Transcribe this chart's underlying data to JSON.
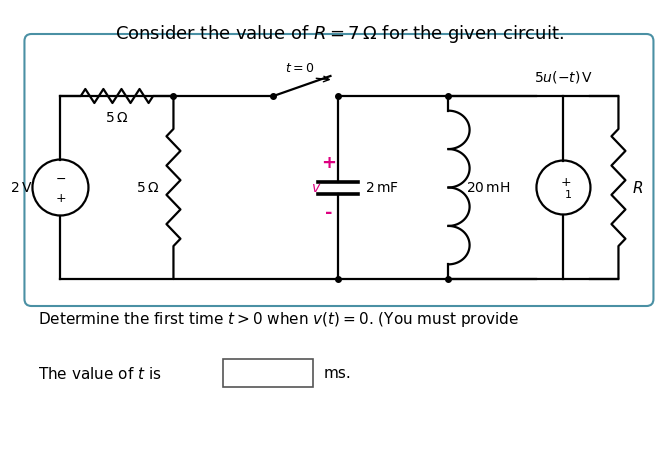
{
  "title": "Consider the value of $R = 7\\,\\Omega$ for the given circuit.",
  "title_fontsize": 13,
  "body_text1": "Determine the first time $t > 0$ when $v(t) = 0$. (You must provide",
  "body_text2": "The value of $t$ is",
  "body_text3": "ms.",
  "label_5ohm_top": "$5\\,\\Omega$",
  "label_5ohm_left": "$5\\,\\Omega$",
  "label_20mh": "$20\\,\\mathrm{mH}$",
  "label_R": "$R$",
  "label_2mF": "$2\\,\\mathrm{mF}$",
  "label_2V": "$2\\,\\mathrm{V}$",
  "label_t0": "$t = 0$",
  "label_5ut": "$5u(-t)\\,\\mathrm{V}$",
  "label_plus": "+",
  "label_minus": "-",
  "label_v": "$v$",
  "background_color": "#ffffff",
  "circuit_color": "#000000",
  "pink_color": "#dd0080",
  "border_color": "#4a90a4",
  "fig_width": 6.42,
  "fig_height": 4.42
}
